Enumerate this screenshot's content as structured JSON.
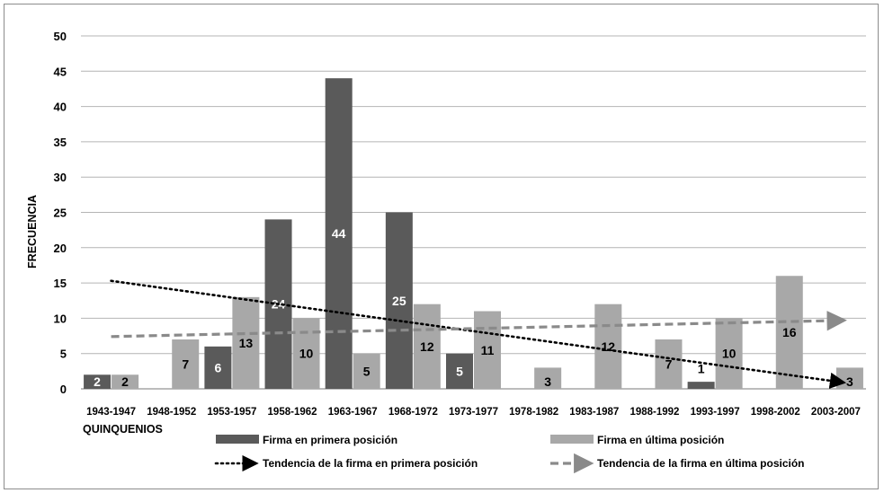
{
  "chart_data": {
    "type": "bar",
    "xlabel": "QUINQUENIOS",
    "ylabel": "FRECUENCIA",
    "ylim": [
      0,
      50
    ],
    "yticks": [
      "0",
      "5",
      "10",
      "15",
      "20",
      "25",
      "30",
      "35",
      "40",
      "45",
      "50"
    ],
    "grid": true,
    "legend_position": "bottom",
    "categories": [
      "1943-1947",
      "1948-1952",
      "1953-1957",
      "1958-1962",
      "1963-1967",
      "1968-1972",
      "1973-1977",
      "1978-1982",
      "1983-1987",
      "1988-1992",
      "1993-1997",
      "1998-2002",
      "2003-2007"
    ],
    "series": [
      {
        "name": "Firma en primera posición",
        "color": "#5a5a5a",
        "label_color": "#ffffff",
        "values": [
          2,
          0,
          6,
          24,
          44,
          25,
          5,
          0,
          0,
          0,
          1,
          0,
          0
        ],
        "data_labels": [
          "2",
          "",
          "6",
          "24",
          "44",
          "25",
          "5",
          "",
          "",
          "",
          "1",
          "",
          ""
        ]
      },
      {
        "name": "Firma en última posición",
        "color": "#a8a8a8",
        "label_color": "#000000",
        "values": [
          2,
          7,
          13,
          10,
          5,
          12,
          11,
          3,
          12,
          7,
          10,
          16,
          3
        ],
        "data_labels": [
          "2",
          "7",
          "13",
          "10",
          "5",
          "12",
          "11",
          "3",
          "12",
          "7",
          "10",
          "16",
          "3"
        ]
      }
    ],
    "trendlines": [
      {
        "name": "Tendencia de la firma en primera posición",
        "color": "#000000",
        "style": "dotted",
        "start": 15.3,
        "end": 0.9
      },
      {
        "name": "Tendencia de la firma en última posición",
        "color": "#8a8a8a",
        "style": "dashed",
        "start": 7.4,
        "end": 9.7
      }
    ]
  }
}
